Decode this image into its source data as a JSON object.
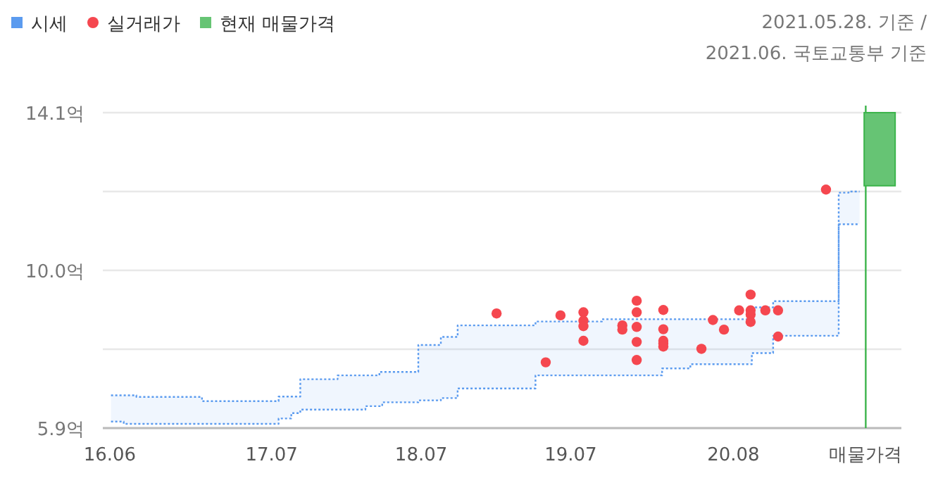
{
  "chart_data": {
    "type": "scatter",
    "annotations": [
      "2021.05.28. 기준 /",
      "2021.06. 국토교통부 기준"
    ],
    "xlim": [
      "2016-05-15",
      "2021-09-15"
    ],
    "xticks": [
      {
        "value": "2016-06",
        "label": "16.06"
      },
      {
        "value": "2017-07",
        "label": "17.07"
      },
      {
        "value": "2018-07",
        "label": "18.07"
      },
      {
        "value": "2019-07",
        "label": "19.07"
      },
      {
        "value": "2020-08",
        "label": "20.08"
      },
      {
        "value": "2021-06-20",
        "label": "매물가격"
      }
    ],
    "ylim": [
      5.9,
      14.1
    ],
    "yticks": [
      {
        "value": 5.9,
        "label": "5.9억"
      },
      {
        "value": 7.95,
        "label": null
      },
      {
        "value": 10.0,
        "label": "10.0억"
      },
      {
        "value": 12.05,
        "label": null
      },
      {
        "value": 14.1,
        "label": "14.1억"
      }
    ],
    "grid": "y",
    "legend": "top left",
    "ref_lines": [
      {
        "axis": "x",
        "value": "2021-06-20",
        "label": null,
        "color": "#3cb44b"
      }
    ],
    "series": [
      {
        "name": "시세",
        "type": "step",
        "color": "#5b9bef",
        "line_style": "dotted",
        "x": [
          "2016-06-04",
          "2016-07-05",
          "2016-08-05",
          "2017-01-12",
          "2017-07-18",
          "2017-08-18",
          "2017-09-09",
          "2017-12-09",
          "2018-02-15",
          "2018-03-21",
          "2018-03-28",
          "2018-06-24",
          "2018-08-18",
          "2018-09-28",
          "2019-04-06",
          "2019-09-15",
          "2020-02-09",
          "2020-04-18",
          "2020-09-15",
          "2020-11-06",
          "2021-04-15",
          "2021-05-09",
          "2021-06-05"
        ],
        "values": [
          6.75,
          6.75,
          6.71,
          6.6,
          6.72,
          6.72,
          7.17,
          7.27,
          7.27,
          7.36,
          7.36,
          8.06,
          8.27,
          8.57,
          8.67,
          8.73,
          8.73,
          8.73,
          9.04,
          9.2,
          12.02,
          12.05,
          12.05
        ],
        "lower": [
          6.07,
          6.01,
          6.01,
          6.01,
          6.15,
          6.29,
          6.38,
          6.38,
          6.47,
          6.47,
          6.57,
          6.62,
          6.68,
          6.93,
          7.27,
          7.27,
          7.45,
          7.56,
          7.85,
          8.3,
          11.2,
          11.2,
          11.2
        ],
        "upper": [
          6.75,
          6.75,
          6.71,
          6.6,
          6.72,
          6.72,
          7.17,
          7.27,
          7.27,
          7.36,
          7.36,
          8.06,
          8.27,
          8.57,
          8.67,
          8.73,
          8.73,
          8.73,
          9.04,
          9.2,
          12.02,
          12.05,
          12.05
        ]
      },
      {
        "type": "step",
        "color": "#5b9bef",
        "line_style": "dotted",
        "x": [
          "2016-06-04",
          "2016-07-05",
          "2016-08-05",
          "2017-01-12",
          "2017-07-18",
          "2017-08-18",
          "2017-09-09",
          "2017-12-09",
          "2018-02-15",
          "2018-03-21",
          "2018-03-28",
          "2018-06-24",
          "2018-08-18",
          "2018-09-28",
          "2019-04-06",
          "2019-09-15",
          "2020-02-09",
          "2020-04-18",
          "2020-09-15",
          "2020-11-06",
          "2021-04-15",
          "2021-05-09",
          "2021-06-05"
        ],
        "values": [
          6.07,
          6.01,
          6.01,
          6.01,
          6.15,
          6.29,
          6.38,
          6.38,
          6.47,
          6.47,
          6.57,
          6.62,
          6.68,
          6.93,
          7.27,
          7.27,
          7.45,
          7.56,
          7.85,
          8.3,
          11.2,
          11.2,
          11.2
        ]
      },
      {
        "name": "실거래가",
        "color": "#f5474f",
        "marker": "circle",
        "x": [
          "2019-01-01",
          "2019-05-01",
          "2019-06-06",
          "2019-08-01",
          "2019-08-01",
          "2019-08-01",
          "2019-08-01",
          "2019-11-04",
          "2019-11-04",
          "2019-12-09",
          "2019-12-09",
          "2019-12-09",
          "2019-12-09",
          "2019-12-09",
          "2020-02-12",
          "2020-02-12",
          "2020-02-12",
          "2020-02-12",
          "2020-02-12",
          "2020-05-15",
          "2020-06-12",
          "2020-07-09",
          "2020-08-15",
          "2020-09-12",
          "2020-09-12",
          "2020-09-12",
          "2020-09-12",
          "2020-10-18",
          "2020-11-18",
          "2020-11-18",
          "2021-03-15"
        ],
        "values": [
          8.88,
          7.61,
          8.83,
          8.91,
          8.69,
          8.55,
          8.17,
          8.57,
          8.46,
          9.21,
          8.91,
          8.53,
          8.14,
          7.67,
          8.97,
          8.47,
          8.17,
          8.1,
          8.02,
          7.96,
          8.71,
          8.46,
          8.96,
          9.37,
          8.96,
          8.85,
          8.66,
          8.96,
          8.96,
          8.28,
          12.1
        ]
      },
      {
        "name": "현재 매물가격",
        "type": "bar",
        "color": "#66c474",
        "x": [
          "2021-07-24"
        ],
        "base": [
          12.2
        ],
        "values": [
          1.9
        ]
      }
    ]
  }
}
